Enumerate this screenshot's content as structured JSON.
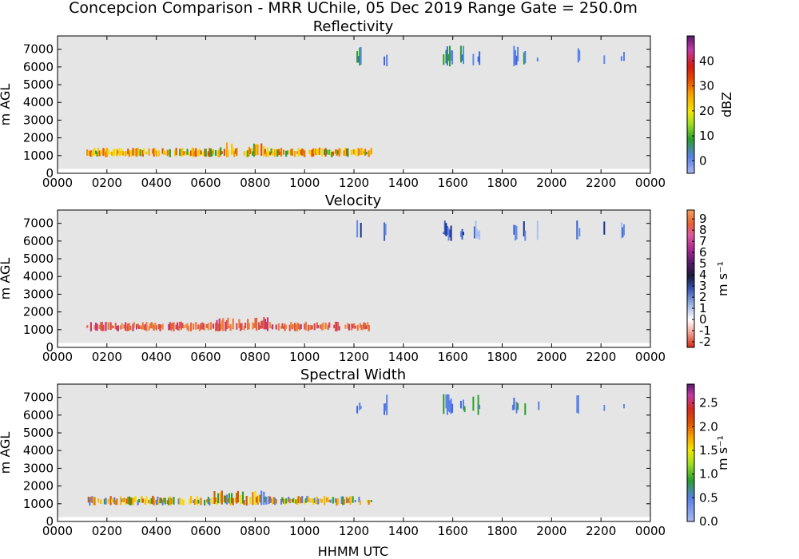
{
  "figure_title": "Concepcion Comparison - MRR UChile, 05 Dec 2019 Range Gate = 250.0m",
  "xlabel": "HHMM UTC",
  "chart_data": [
    {
      "type": "heatmap",
      "title": "Reflectivity",
      "ylabel": "m AGL",
      "cbar_label": "dBZ",
      "x_ticks": [
        "0000",
        "0200",
        "0400",
        "0600",
        "0800",
        "1000",
        "1200",
        "1400",
        "1600",
        "1800",
        "2000",
        "2200",
        "0000"
      ],
      "y_ticks": [
        "0",
        "1000",
        "2000",
        "3000",
        "4000",
        "5000",
        "6000",
        "7000"
      ],
      "ylim": [
        0,
        7750
      ],
      "cbar_range": [
        -5,
        50
      ],
      "cbar_ticks": [
        "0",
        "10",
        "20",
        "30",
        "40"
      ],
      "cbar_tick_values": [
        0,
        10,
        20,
        30,
        40
      ],
      "cbar_stops": [
        {
          "v": 0.0,
          "c": "#a8b8f0"
        },
        {
          "v": 0.12,
          "c": "#5a7fe8"
        },
        {
          "v": 0.25,
          "c": "#2aa02a"
        },
        {
          "v": 0.36,
          "c": "#a0e020"
        },
        {
          "v": 0.45,
          "c": "#f5e600"
        },
        {
          "v": 0.58,
          "c": "#f5a000"
        },
        {
          "v": 0.68,
          "c": "#e84a00"
        },
        {
          "v": 0.78,
          "c": "#d41a10"
        },
        {
          "v": 0.9,
          "c": "#c43aa8"
        },
        {
          "v": 1.0,
          "c": "#5a1a6e"
        }
      ],
      "lower_layer_palette": [
        "#f7c600",
        "#f5a300",
        "#e87b00",
        "#e05300",
        "#2fa02a",
        "#f3dc00"
      ],
      "upper_layer_palette": [
        "#5a7fe8",
        "#3f66df",
        "#2aa02a",
        "#5f8ae6"
      ]
    },
    {
      "type": "heatmap",
      "title": "Velocity",
      "ylabel": "m AGL",
      "cbar_label": "m s⁻¹",
      "x_ticks": [
        "0000",
        "0200",
        "0400",
        "0600",
        "0800",
        "1000",
        "1200",
        "1400",
        "1600",
        "1800",
        "2000",
        "2200",
        "0000"
      ],
      "y_ticks": [
        "0",
        "1000",
        "2000",
        "3000",
        "4000",
        "5000",
        "6000",
        "7000"
      ],
      "ylim": [
        0,
        7750
      ],
      "cbar_range": [
        -2.5,
        9.8
      ],
      "cbar_ticks": [
        "-2",
        "-1",
        "0",
        "1",
        "2",
        "3",
        "4",
        "5",
        "6",
        "7",
        "8",
        "9"
      ],
      "cbar_tick_values": [
        -2,
        -1,
        0,
        1,
        2,
        3,
        4,
        5,
        6,
        7,
        8,
        9
      ],
      "cbar_stops": [
        {
          "v": 0.0,
          "c": "#d42a10"
        },
        {
          "v": 0.12,
          "c": "#f5b0a8"
        },
        {
          "v": 0.2,
          "c": "#ffffff"
        },
        {
          "v": 0.3,
          "c": "#a8bce8"
        },
        {
          "v": 0.42,
          "c": "#3a5ab8"
        },
        {
          "v": 0.52,
          "c": "#1a1a3a"
        },
        {
          "v": 0.62,
          "c": "#5a1a6e"
        },
        {
          "v": 0.72,
          "c": "#b02a90"
        },
        {
          "v": 0.82,
          "c": "#e05aa0"
        },
        {
          "v": 0.9,
          "c": "#e86030"
        },
        {
          "v": 1.0,
          "c": "#f5a060"
        }
      ],
      "lower_layer_palette": [
        "#e8643a",
        "#ee7a3c",
        "#d94c4c",
        "#f08a40",
        "#c8386e"
      ],
      "upper_layer_palette": [
        "#6a8ee0",
        "#3a5ec8",
        "#aac0ee",
        "#1e2f86"
      ]
    },
    {
      "type": "heatmap",
      "title": "Spectral Width",
      "ylabel": "m AGL",
      "cbar_label": "m s⁻¹",
      "x_ticks": [
        "0000",
        "0200",
        "0400",
        "0600",
        "0800",
        "1000",
        "1200",
        "1400",
        "1600",
        "1800",
        "2000",
        "2200",
        "0000"
      ],
      "y_ticks": [
        "0",
        "1000",
        "2000",
        "3000",
        "4000",
        "5000",
        "6000",
        "7000"
      ],
      "ylim": [
        0,
        7750
      ],
      "cbar_range": [
        0,
        2.9
      ],
      "cbar_ticks": [
        "0.0",
        "0.5",
        "1.0",
        "1.5",
        "2.0",
        "2.5"
      ],
      "cbar_tick_values": [
        0,
        0.5,
        1.0,
        1.5,
        2.0,
        2.5
      ],
      "cbar_stops": [
        {
          "v": 0.0,
          "c": "#a8b8f0"
        },
        {
          "v": 0.17,
          "c": "#5a7fe8"
        },
        {
          "v": 0.3,
          "c": "#2aa02a"
        },
        {
          "v": 0.42,
          "c": "#a0e020"
        },
        {
          "v": 0.52,
          "c": "#f5e600"
        },
        {
          "v": 0.62,
          "c": "#f5a000"
        },
        {
          "v": 0.72,
          "c": "#e05000"
        },
        {
          "v": 0.82,
          "c": "#d42a20"
        },
        {
          "v": 0.92,
          "c": "#c43aa8"
        },
        {
          "v": 1.0,
          "c": "#5a1a6e"
        }
      ],
      "lower_layer_palette": [
        "#e87b00",
        "#f5b800",
        "#d45a00",
        "#2fa02a",
        "#f3dc00",
        "#5a7fe8"
      ],
      "upper_layer_palette": [
        "#5a7fe8",
        "#3f66df",
        "#2aa02a",
        "#5f8ae6"
      ]
    }
  ]
}
